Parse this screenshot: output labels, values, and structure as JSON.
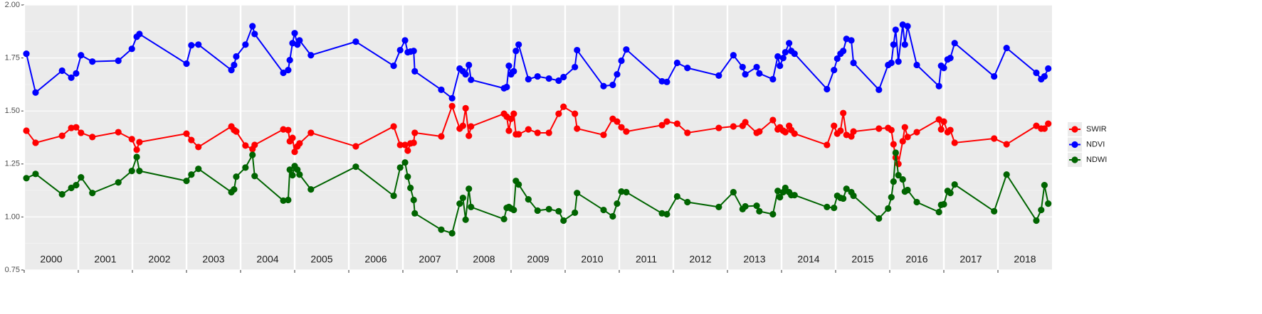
{
  "chart_data": {
    "type": "line",
    "markers": true,
    "x": [
      2000.04,
      2000.21,
      2000.7,
      2000.87,
      2000.96,
      2001.05,
      2001.26,
      2001.74,
      2001.99,
      2002.08,
      2002.13,
      2003.0,
      2003.09,
      2003.22,
      2003.83,
      2003.88,
      2003.92,
      2004.09,
      2004.22,
      2004.26,
      2004.79,
      2004.88,
      2004.91,
      2004.96,
      2005.0,
      2005.05,
      2005.09,
      2005.3,
      2006.13,
      2006.83,
      2006.95,
      2007.04,
      2007.09,
      2007.14,
      2007.2,
      2007.22,
      2007.71,
      2007.91,
      2008.05,
      2008.11,
      2008.16,
      2008.22,
      2008.26,
      2008.87,
      2008.92,
      2008.96,
      2009.0,
      2009.05,
      2009.09,
      2009.14,
      2009.32,
      2009.49,
      2009.7,
      2009.88,
      2009.97,
      2010.18,
      2010.22,
      2010.71,
      2010.88,
      2010.96,
      2011.04,
      2011.13,
      2011.79,
      2011.88,
      2012.07,
      2012.26,
      2012.84,
      2013.11,
      2013.28,
      2013.33,
      2013.54,
      2013.59,
      2013.84,
      2013.93,
      2013.97,
      2014.03,
      2014.07,
      2014.14,
      2014.18,
      2014.24,
      2014.84,
      2014.97,
      2015.03,
      2015.09,
      2015.14,
      2015.2,
      2015.29,
      2015.33,
      2015.8,
      2015.97,
      2016.03,
      2016.07,
      2016.11,
      2016.16,
      2016.24,
      2016.28,
      2016.33,
      2016.5,
      2016.91,
      2016.95,
      2017.0,
      2017.07,
      2017.12,
      2017.2,
      2017.93,
      2018.16,
      2018.71,
      2018.8,
      2018.86,
      2018.93
    ],
    "series": [
      {
        "name": "SWIR",
        "color": "#ff0000",
        "values": [
          1.407,
          1.35,
          1.383,
          1.42,
          1.423,
          1.397,
          1.377,
          1.4,
          1.367,
          1.317,
          1.353,
          1.393,
          1.363,
          1.33,
          1.427,
          1.41,
          1.403,
          1.337,
          1.32,
          1.34,
          1.413,
          1.41,
          1.357,
          1.373,
          1.307,
          1.333,
          1.347,
          1.397,
          1.333,
          1.427,
          1.34,
          1.34,
          1.313,
          1.347,
          1.35,
          1.397,
          1.38,
          1.523,
          1.417,
          1.43,
          1.513,
          1.383,
          1.427,
          1.487,
          1.473,
          1.407,
          1.463,
          1.487,
          1.39,
          1.39,
          1.413,
          1.397,
          1.397,
          1.487,
          1.52,
          1.487,
          1.417,
          1.387,
          1.463,
          1.45,
          1.423,
          1.403,
          1.433,
          1.45,
          1.44,
          1.397,
          1.42,
          1.427,
          1.43,
          1.447,
          1.397,
          1.403,
          1.457,
          1.413,
          1.423,
          1.407,
          1.4,
          1.43,
          1.41,
          1.393,
          1.34,
          1.43,
          1.393,
          1.407,
          1.49,
          1.387,
          1.38,
          1.403,
          1.417,
          1.42,
          1.41,
          1.343,
          1.28,
          1.25,
          1.357,
          1.423,
          1.377,
          1.4,
          1.46,
          1.413,
          1.45,
          1.4,
          1.41,
          1.35,
          1.37,
          1.343,
          1.43,
          1.417,
          1.417,
          1.44
        ]
      },
      {
        "name": "NDVI",
        "color": "#0000ff",
        "values": [
          1.77,
          1.587,
          1.69,
          1.657,
          1.677,
          1.763,
          1.733,
          1.737,
          1.793,
          1.85,
          1.863,
          1.723,
          1.81,
          1.813,
          1.693,
          1.717,
          1.757,
          1.813,
          1.9,
          1.863,
          1.68,
          1.693,
          1.74,
          1.82,
          1.867,
          1.813,
          1.833,
          1.763,
          1.827,
          1.713,
          1.787,
          1.833,
          1.777,
          1.78,
          1.783,
          1.687,
          1.6,
          1.56,
          1.7,
          1.687,
          1.673,
          1.717,
          1.647,
          1.607,
          1.613,
          1.713,
          1.673,
          1.687,
          1.783,
          1.813,
          1.65,
          1.663,
          1.653,
          1.643,
          1.66,
          1.707,
          1.787,
          1.617,
          1.623,
          1.673,
          1.737,
          1.79,
          1.64,
          1.637,
          1.727,
          1.703,
          1.667,
          1.763,
          1.707,
          1.673,
          1.707,
          1.677,
          1.65,
          1.757,
          1.713,
          1.75,
          1.777,
          1.82,
          1.783,
          1.77,
          1.603,
          1.693,
          1.747,
          1.77,
          1.783,
          1.84,
          1.833,
          1.727,
          1.6,
          1.717,
          1.727,
          1.813,
          1.883,
          1.733,
          1.907,
          1.813,
          1.9,
          1.717,
          1.617,
          1.713,
          1.703,
          1.743,
          1.75,
          1.82,
          1.663,
          1.797,
          1.68,
          1.65,
          1.663,
          1.7
        ]
      },
      {
        "name": "NDWI",
        "color": "#006400",
        "values": [
          1.183,
          1.203,
          1.107,
          1.137,
          1.15,
          1.187,
          1.113,
          1.163,
          1.217,
          1.283,
          1.217,
          1.17,
          1.2,
          1.227,
          1.117,
          1.13,
          1.19,
          1.233,
          1.293,
          1.193,
          1.077,
          1.08,
          1.223,
          1.197,
          1.24,
          1.223,
          1.2,
          1.13,
          1.237,
          1.1,
          1.233,
          1.257,
          1.19,
          1.137,
          1.08,
          1.017,
          0.94,
          0.923,
          1.063,
          1.09,
          0.987,
          1.133,
          1.047,
          0.99,
          1.043,
          1.047,
          1.04,
          1.033,
          1.17,
          1.153,
          1.083,
          1.03,
          1.037,
          1.027,
          0.983,
          1.02,
          1.113,
          1.033,
          1.003,
          1.063,
          1.12,
          1.117,
          1.017,
          1.013,
          1.097,
          1.07,
          1.047,
          1.117,
          1.037,
          1.05,
          1.053,
          1.027,
          1.013,
          1.123,
          1.093,
          1.117,
          1.137,
          1.117,
          1.103,
          1.103,
          1.047,
          1.043,
          1.1,
          1.09,
          1.087,
          1.133,
          1.117,
          1.1,
          0.993,
          1.04,
          1.093,
          1.167,
          1.303,
          1.197,
          1.177,
          1.12,
          1.127,
          1.07,
          1.023,
          1.057,
          1.06,
          1.123,
          1.113,
          1.153,
          1.027,
          1.2,
          0.983,
          1.033,
          1.15,
          1.063
        ]
      }
    ],
    "xlim": [
      2000,
      2019
    ],
    "xticks": [
      {
        "value": 2000.5,
        "label": "2000"
      },
      {
        "value": 2001.5,
        "label": "2001"
      },
      {
        "value": 2002.5,
        "label": "2002"
      },
      {
        "value": 2003.5,
        "label": "2003"
      },
      {
        "value": 2004.5,
        "label": "2004"
      },
      {
        "value": 2005.5,
        "label": "2005"
      },
      {
        "value": 2006.5,
        "label": "2006"
      },
      {
        "value": 2007.5,
        "label": "2007"
      },
      {
        "value": 2008.5,
        "label": "2008"
      },
      {
        "value": 2009.5,
        "label": "2009"
      },
      {
        "value": 2010.5,
        "label": "2010"
      },
      {
        "value": 2011.5,
        "label": "2011"
      },
      {
        "value": 2012.5,
        "label": "2012"
      },
      {
        "value": 2013.5,
        "label": "2013"
      },
      {
        "value": 2014.5,
        "label": "2014"
      },
      {
        "value": 2015.5,
        "label": "2015"
      },
      {
        "value": 2016.5,
        "label": "2016"
      },
      {
        "value": 2017.5,
        "label": "2017"
      },
      {
        "value": 2018.5,
        "label": "2018"
      }
    ],
    "year_lines": [
      2000,
      2001,
      2002,
      2003,
      2004,
      2005,
      2006,
      2007,
      2008,
      2009,
      2010,
      2011,
      2012,
      2013,
      2014,
      2015,
      2016,
      2017,
      2018
    ],
    "ylim": [
      0.75,
      2.0
    ],
    "yticks": [
      {
        "value": 0.75,
        "label": "0.75"
      },
      {
        "value": 1.0,
        "label": "1.00"
      },
      {
        "value": 1.25,
        "label": "1.25"
      },
      {
        "value": 1.5,
        "label": "1.50"
      },
      {
        "value": 1.75,
        "label": "1.75"
      },
      {
        "value": 2.0,
        "label": "2.00"
      }
    ],
    "grid": true,
    "legend": "right"
  }
}
